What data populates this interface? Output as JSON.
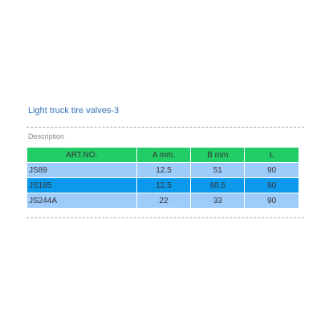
{
  "header": {
    "title": "Light truck tire valves-3",
    "section": "Description"
  },
  "table": {
    "columns": [
      "ART.NO.",
      "A mm.",
      "B mm",
      "L"
    ],
    "rows": [
      [
        "JS89",
        "12.5",
        "51",
        "90"
      ],
      [
        "JS185",
        "12.5",
        "60.5",
        "90"
      ],
      [
        "JS244A",
        "22",
        "33",
        "90"
      ]
    ]
  }
}
